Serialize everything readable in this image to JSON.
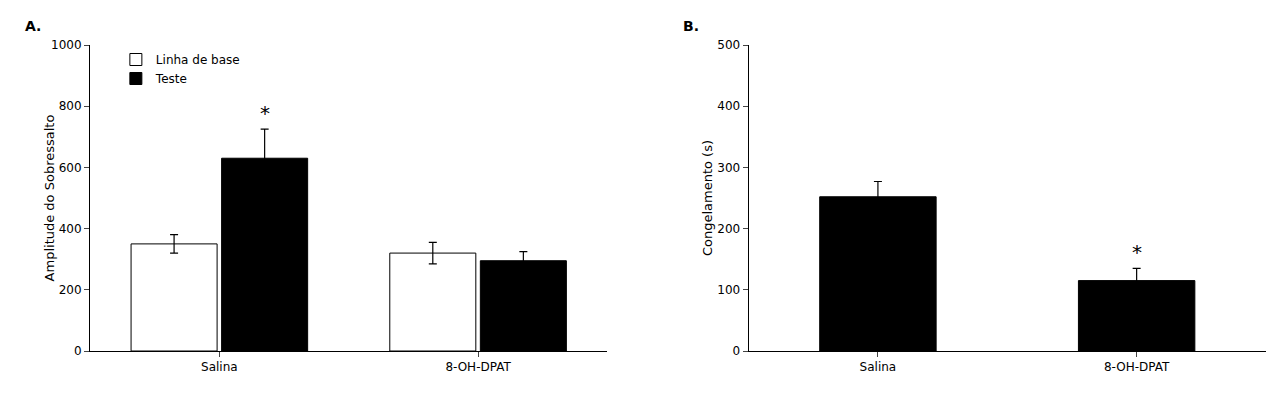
{
  "chart_data": [
    {
      "type": "bar",
      "title": "A.",
      "ylabel": "Amplitude do Sobressalto",
      "categories": [
        "Salina",
        "8-OH-DPAT"
      ],
      "series": [
        {
          "name": "Linha de base",
          "color": "#ffffff",
          "values": [
            350,
            320
          ],
          "errors": [
            30,
            35
          ]
        },
        {
          "name": "Teste",
          "color": "#000000",
          "values": [
            630,
            295
          ],
          "errors": [
            95,
            30
          ]
        }
      ],
      "ylim": [
        0,
        1000
      ],
      "yticks": [
        0,
        200,
        400,
        600,
        800,
        1000
      ],
      "grid": false,
      "legend": "upper left",
      "annotations": [
        {
          "text": "*",
          "category": "Salina",
          "series": "Teste"
        }
      ]
    },
    {
      "type": "bar",
      "title": "B.",
      "ylabel": "Congelamento (s)",
      "categories": [
        "Salina",
        "8-OH-DPAT"
      ],
      "values": [
        252,
        115
      ],
      "errors": [
        25,
        20
      ],
      "color": "#000000",
      "ylim": [
        0,
        500
      ],
      "yticks": [
        0,
        100,
        200,
        300,
        400,
        500
      ],
      "grid": false,
      "annotations": [
        {
          "text": "*",
          "category": "8-OH-DPAT"
        }
      ]
    }
  ]
}
